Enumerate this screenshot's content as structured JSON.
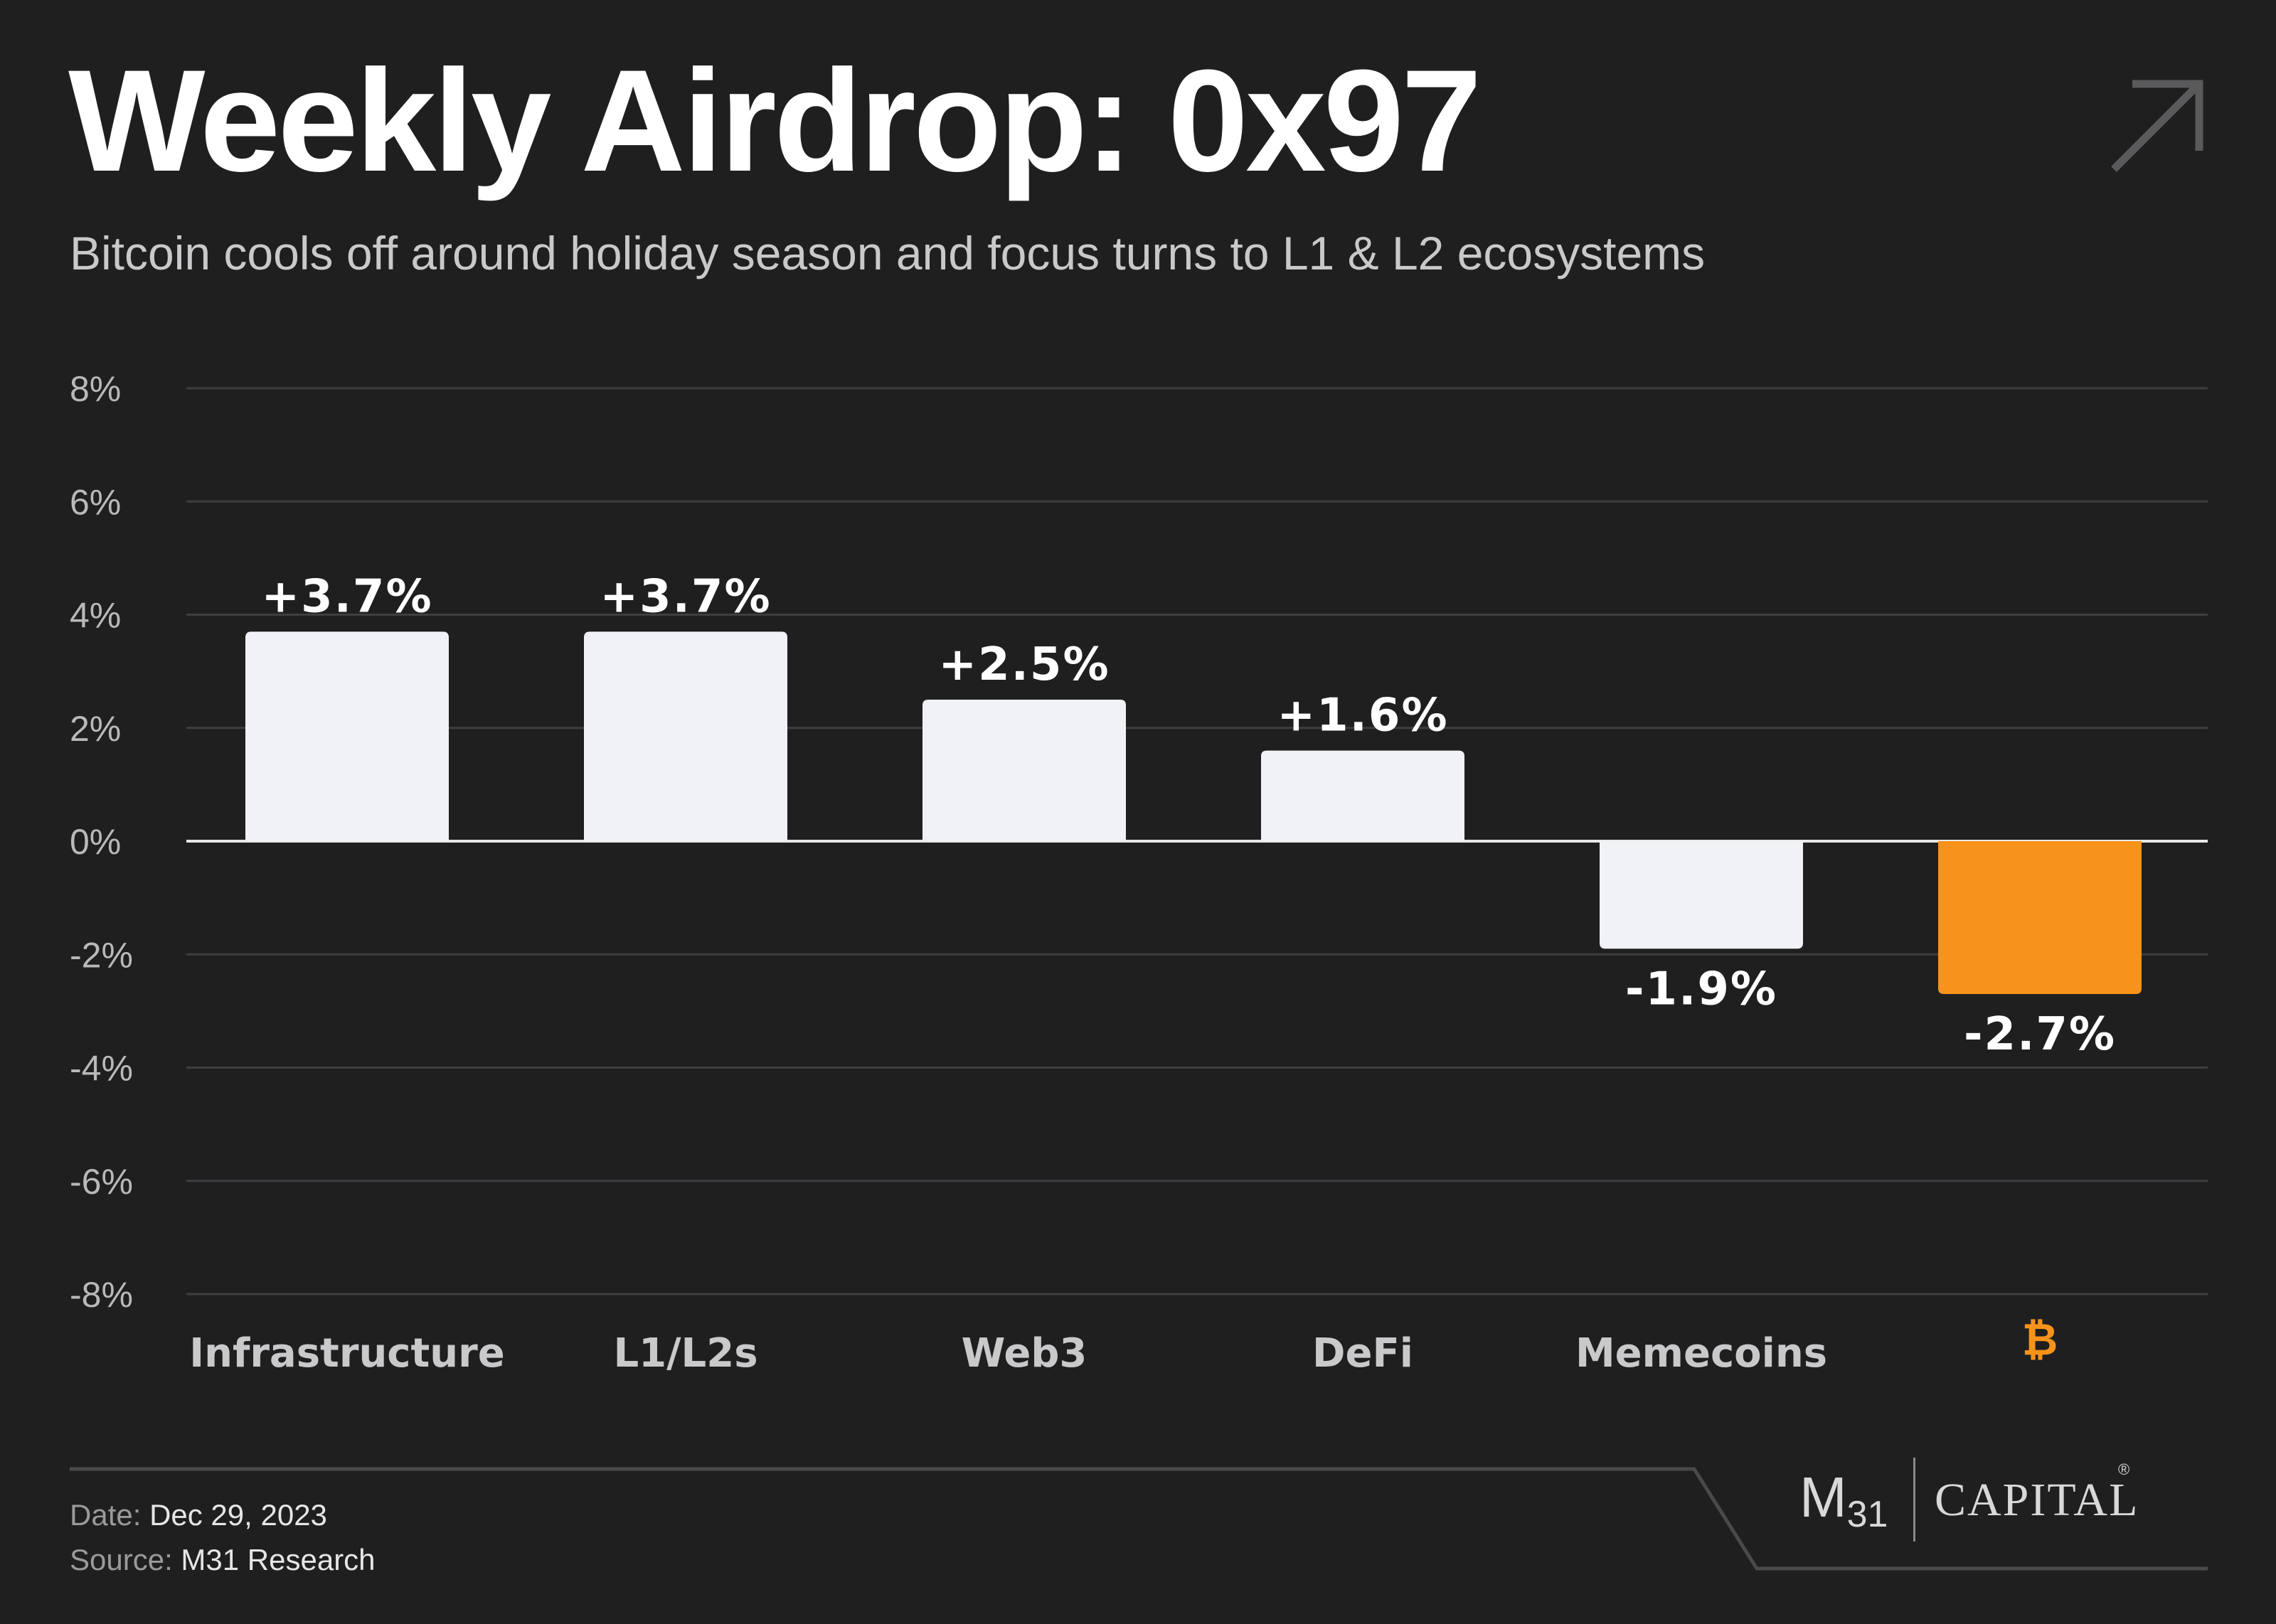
{
  "header": {
    "title": "Weekly Airdrop: 0x97",
    "subtitle": "Bitcoin cools off around holiday season and focus turns to L1 & L2 ecosystems"
  },
  "footer": {
    "date_label": "Date:",
    "date_value": "Dec 29, 2023",
    "source_label": "Source:",
    "source_value": "M31 Research"
  },
  "logo": {
    "mark": "M",
    "mark_sub": "31",
    "wordmark": "CAPITAL",
    "registered": "®"
  },
  "colors": {
    "background": "#1f1f20",
    "bar": "#f1f2f5",
    "bitcoin": "#f7931a",
    "grid": "#3f3f42",
    "zero_line": "#e8e8ea",
    "tick_text": "#b9b9bc"
  },
  "chart_data": {
    "type": "bar",
    "categories": [
      "Infrastructure",
      "L1/L2s",
      "Web3",
      "DeFi",
      "Memecoins",
      "₿"
    ],
    "values": [
      3.7,
      3.7,
      2.5,
      1.6,
      -1.9,
      -2.7
    ],
    "data_labels": [
      "+3.7%",
      "+3.7%",
      "+2.5%",
      "+1.6%",
      "-1.9%",
      "-2.7%"
    ],
    "highlight_index": 5,
    "highlight_icon": "bitcoin-icon",
    "ylim": [
      -8,
      8
    ],
    "yticks": [
      8,
      6,
      4,
      2,
      0,
      -2,
      -4,
      -6,
      -8
    ],
    "ytick_labels": [
      "8%",
      "6%",
      "4%",
      "2%",
      "0%",
      "-2%",
      "-4%",
      "-6%",
      "-8%"
    ],
    "grid": true,
    "legend": "none"
  }
}
